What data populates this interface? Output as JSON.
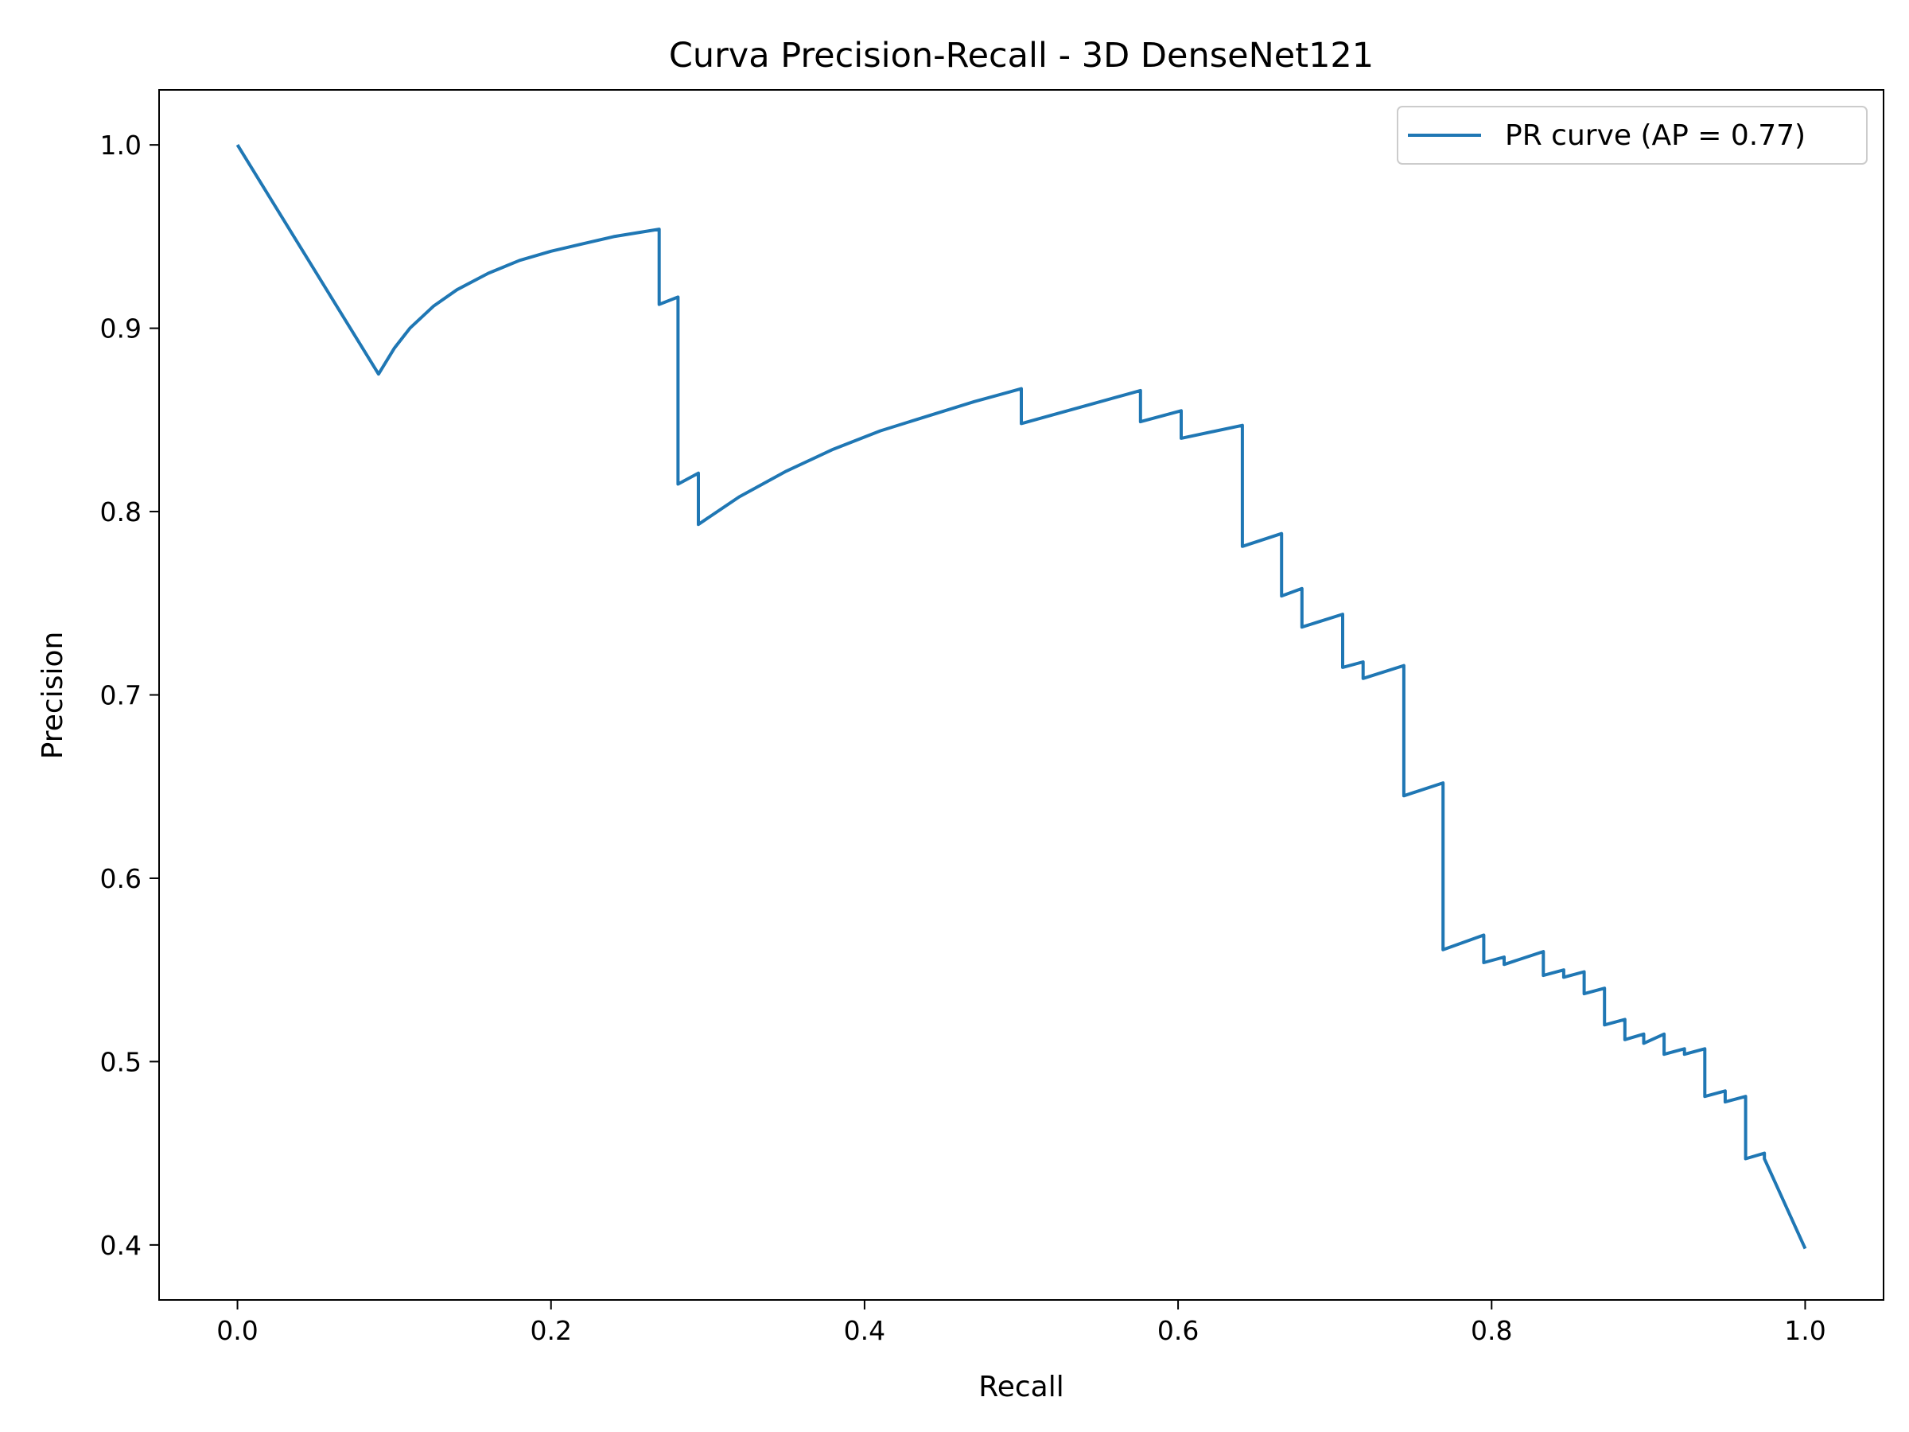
{
  "chart_data": {
    "type": "line",
    "title": "Curva Precision-Recall - 3D DenseNet121",
    "xlabel": "Recall",
    "ylabel": "Precision",
    "xlim": [
      -0.05,
      1.05
    ],
    "ylim": [
      0.37,
      1.03
    ],
    "xticks": [
      0.0,
      0.2,
      0.4,
      0.6,
      0.8,
      1.0
    ],
    "xtick_labels": [
      "0.0",
      "0.2",
      "0.4",
      "0.6",
      "0.8",
      "1.0"
    ],
    "yticks": [
      0.4,
      0.5,
      0.6,
      0.7,
      0.8,
      0.9,
      1.0
    ],
    "ytick_labels": [
      "0.4",
      "0.5",
      "0.6",
      "0.7",
      "0.8",
      "0.9",
      "1.0"
    ],
    "grid": false,
    "legend_position": "top-right",
    "series": [
      {
        "name": "PR curve (AP = 0.77)",
        "color": "#1f77b4",
        "x": [
          0.0,
          0.09,
          0.1,
          0.11,
          0.125,
          0.14,
          0.16,
          0.18,
          0.2,
          0.22,
          0.24,
          0.269,
          0.269,
          0.281,
          0.281,
          0.294,
          0.294,
          0.32,
          0.35,
          0.38,
          0.41,
          0.44,
          0.47,
          0.5,
          0.5,
          0.576,
          0.576,
          0.602,
          0.602,
          0.641,
          0.641,
          0.666,
          0.666,
          0.679,
          0.679,
          0.705,
          0.705,
          0.718,
          0.718,
          0.744,
          0.744,
          0.769,
          0.769,
          0.795,
          0.795,
          0.808,
          0.808,
          0.833,
          0.833,
          0.846,
          0.846,
          0.859,
          0.859,
          0.872,
          0.872,
          0.885,
          0.885,
          0.897,
          0.897,
          0.91,
          0.91,
          0.923,
          0.923,
          0.936,
          0.936,
          0.949,
          0.949,
          0.962,
          0.962,
          0.974,
          0.974,
          1.0
        ],
        "y": [
          1.0,
          0.875,
          0.889,
          0.9,
          0.912,
          0.921,
          0.93,
          0.937,
          0.942,
          0.946,
          0.95,
          0.954,
          0.913,
          0.917,
          0.815,
          0.821,
          0.793,
          0.808,
          0.822,
          0.834,
          0.844,
          0.852,
          0.86,
          0.867,
          0.848,
          0.866,
          0.849,
          0.855,
          0.84,
          0.847,
          0.781,
          0.788,
          0.754,
          0.758,
          0.737,
          0.744,
          0.715,
          0.718,
          0.709,
          0.716,
          0.645,
          0.652,
          0.561,
          0.569,
          0.554,
          0.557,
          0.553,
          0.56,
          0.547,
          0.55,
          0.546,
          0.549,
          0.537,
          0.54,
          0.52,
          0.523,
          0.512,
          0.515,
          0.51,
          0.515,
          0.504,
          0.507,
          0.504,
          0.507,
          0.481,
          0.484,
          0.478,
          0.481,
          0.447,
          0.45,
          0.447,
          0.398
        ]
      }
    ]
  }
}
